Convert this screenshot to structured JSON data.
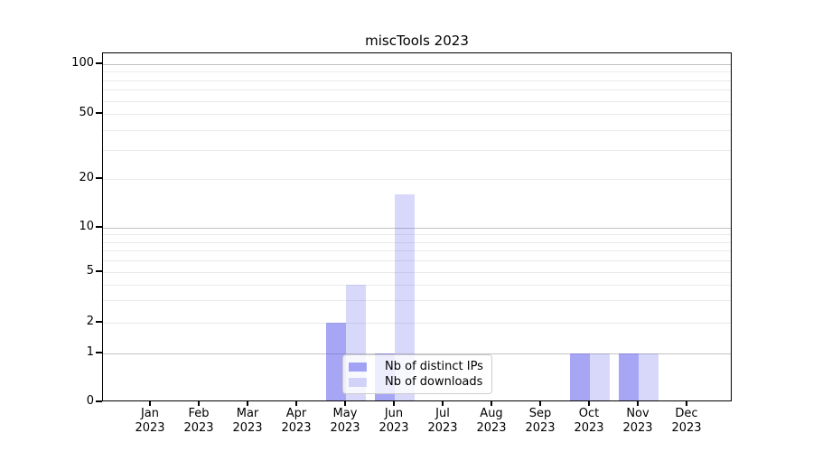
{
  "title": "miscTools 2023",
  "chart_data": {
    "type": "bar",
    "title": "miscTools 2023",
    "xlabel": "",
    "ylabel": "",
    "categories": [
      "Jan",
      "Feb",
      "Mar",
      "Apr",
      "May",
      "Jun",
      "Jul",
      "Aug",
      "Sep",
      "Oct",
      "Nov",
      "Dec"
    ],
    "year": "2023",
    "series": [
      {
        "name": "Nb of distinct IPs",
        "color": "rgba(92,92,235,0.55)",
        "values": [
          0,
          0,
          0,
          0,
          2,
          1,
          0,
          0,
          0,
          1,
          1,
          0
        ]
      },
      {
        "name": "Nb of downloads",
        "color": "rgba(92,92,235,0.24)",
        "values": [
          0,
          0,
          0,
          0,
          4,
          16,
          0,
          0,
          0,
          1,
          1,
          0
        ]
      }
    ],
    "yticks": [
      0,
      1,
      2,
      5,
      10,
      20,
      50,
      100
    ],
    "ylim": [
      0,
      115
    ],
    "yscale": "log above 1, linear 0-1 (symlog-like)",
    "grid": "horizontal, major and minor log lines",
    "legend_position": "lower center inside axes",
    "colors": {
      "bar_dark_rendered": "#a8a8f0",
      "bar_light_rendered": "#d9d9f8",
      "grid_major": "#c3c3c3",
      "grid_minor": "#eaeaea",
      "axis": "#000000"
    }
  }
}
